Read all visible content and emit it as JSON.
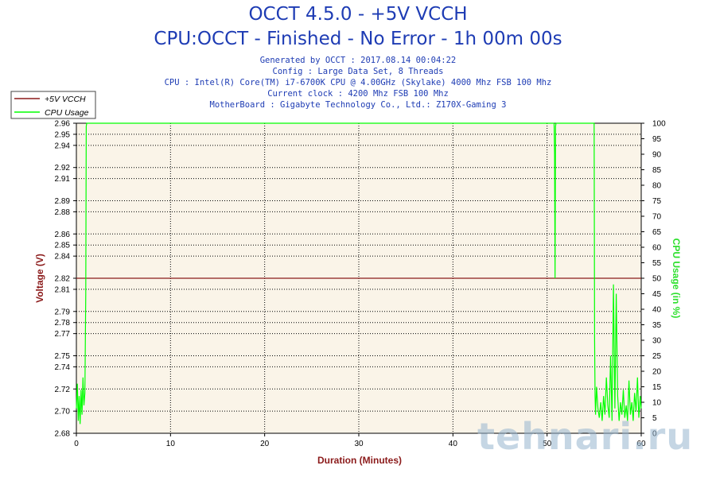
{
  "header": {
    "title": "OCCT 4.5.0 - +5V VCCH",
    "subtitle": "CPU:OCCT - Finished - No Error - 1h 00m 00s",
    "info_lines": [
      "Generated by OCCT : 2017.08.14 00:04:22",
      "Config : Large Data Set, 8 Threads",
      "CPU : Intel(R) Core(TM) i7-6700K CPU @ 4.00GHz (Skylake) 4000 Mhz FSB 100 Mhz",
      "Current clock : 4200 Mhz FSB 100 Mhz",
      "MotherBoard : Gigabyte Technology Co., Ltd.: Z170X-Gaming 3"
    ]
  },
  "watermark": "tehnari.ru",
  "colors": {
    "voltage_line": "#8b1a1a",
    "cpu_line": "#00ff00",
    "plot_bg": "#faf4e8",
    "grid": "#000000",
    "left_axis_label": "#8b1a1a",
    "right_axis_label": "#2ee02e",
    "x_axis_label": "#8b1a1a",
    "title": "#1e3cb4"
  },
  "chart_data": {
    "type": "line",
    "xlabel": "Duration (Minutes)",
    "ylabel": "Voltage (V)",
    "y2label": "CPU Usage (in %)",
    "xlim": [
      0,
      60
    ],
    "ylim": [
      2.68,
      2.96
    ],
    "y2lim": [
      0,
      100
    ],
    "x_ticks": [
      0,
      10,
      20,
      30,
      40,
      50,
      60
    ],
    "y_ticks": [
      2.68,
      2.7,
      2.72,
      2.74,
      2.75,
      2.77,
      2.78,
      2.79,
      2.81,
      2.82,
      2.84,
      2.85,
      2.86,
      2.88,
      2.89,
      2.91,
      2.92,
      2.94,
      2.95,
      2.96
    ],
    "y2_ticks": [
      0,
      5,
      10,
      15,
      20,
      25,
      30,
      35,
      40,
      45,
      50,
      55,
      60,
      65,
      70,
      75,
      80,
      85,
      90,
      95,
      100
    ],
    "grid": true,
    "legend_position": "top-left",
    "series": [
      {
        "name": "+5V VCCH",
        "axis": "left",
        "x": [
          0,
          60
        ],
        "y": [
          2.82,
          2.82
        ]
      },
      {
        "name": "CPU Usage",
        "axis": "right",
        "x": [
          0,
          0.1,
          0.2,
          0.3,
          0.4,
          0.5,
          0.6,
          0.7,
          0.8,
          0.9,
          1.0,
          1.05,
          1.1,
          1.15,
          1.2,
          50.75,
          50.8,
          50.85,
          50.9,
          50.95,
          51.05,
          55.0,
          55.05,
          55.1,
          55.15,
          55.25,
          55.4,
          55.55,
          55.7,
          55.85,
          56.0,
          56.15,
          56.3,
          56.45,
          56.6,
          56.75,
          56.9,
          57.05,
          57.2,
          57.35,
          57.5,
          57.65,
          57.8,
          57.95,
          58.1,
          58.25,
          58.4,
          58.55,
          58.7,
          58.85,
          59.0,
          59.15,
          59.3,
          59.45,
          59.6,
          59.75,
          59.9,
          60.0
        ],
        "y": [
          8,
          16,
          4,
          12,
          3,
          14,
          6,
          18,
          9,
          13,
          45,
          99,
          100,
          100,
          100,
          100,
          90,
          50,
          99,
          100,
          100,
          100,
          30,
          12,
          6,
          15,
          8,
          5,
          10,
          4,
          12,
          6,
          18,
          9,
          5,
          25,
          4,
          48,
          8,
          45,
          12,
          4,
          10,
          6,
          14,
          5,
          9,
          4,
          17,
          6,
          10,
          4,
          13,
          7,
          18,
          5,
          12,
          8
        ]
      }
    ]
  }
}
